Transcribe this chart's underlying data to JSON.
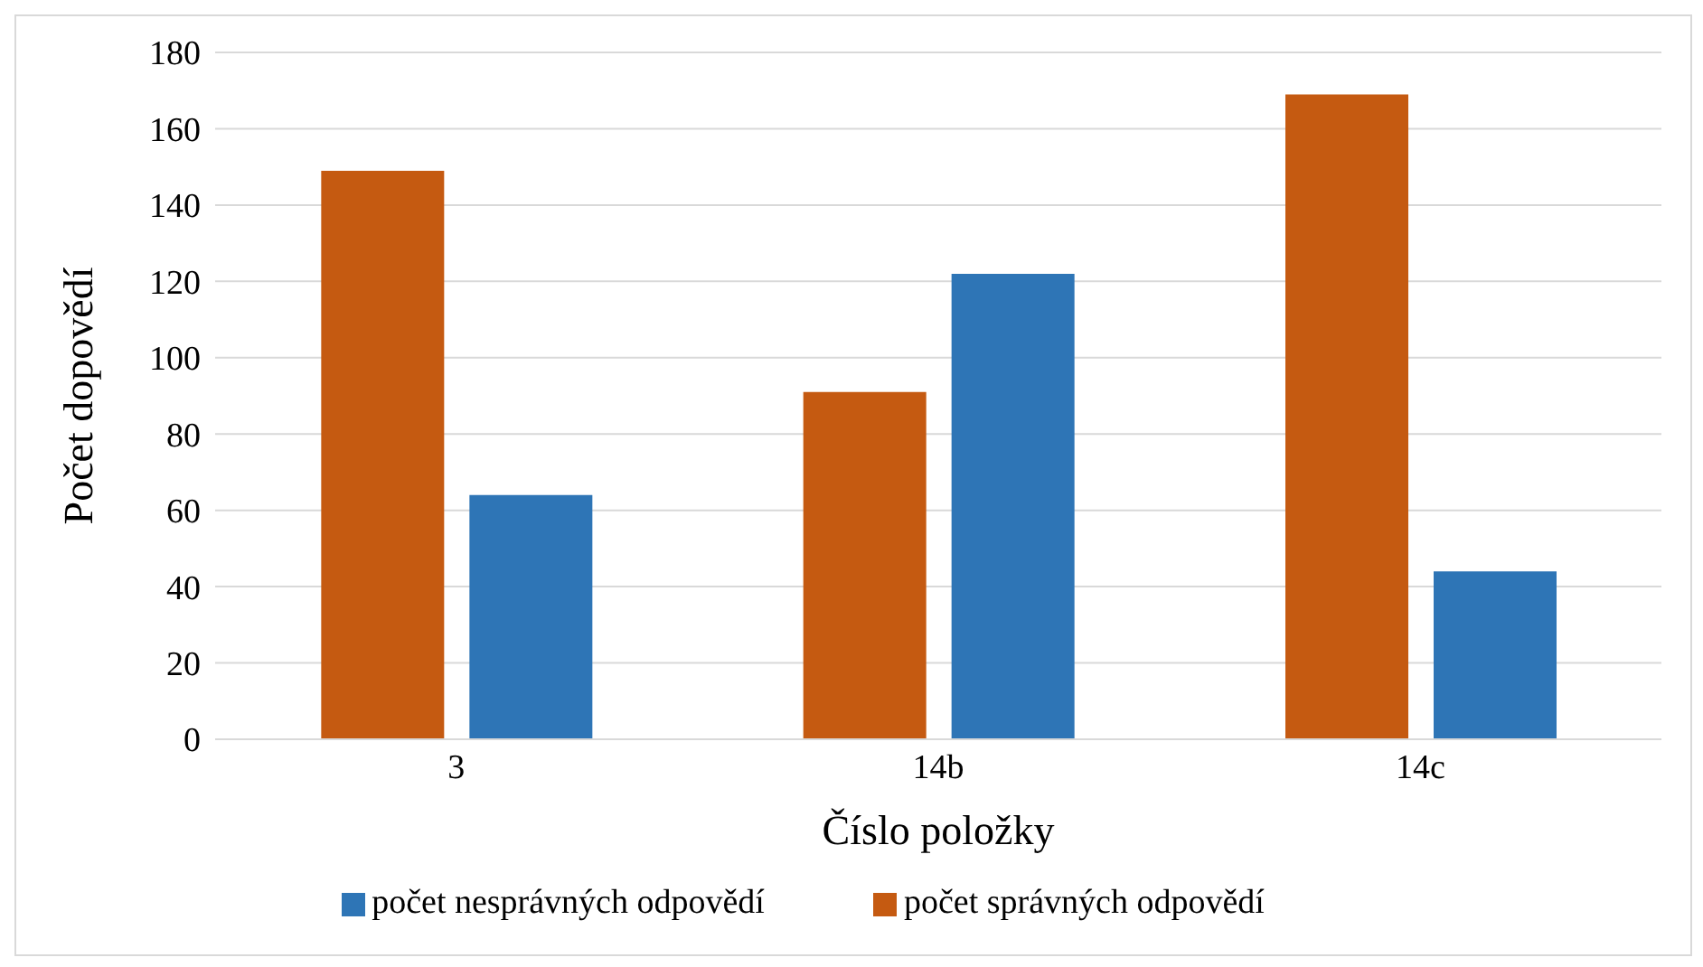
{
  "chart_data": {
    "type": "bar",
    "xlabel": "Číslo položky",
    "ylabel": "Počet dopovědí",
    "categories": [
      "3",
      "14b",
      "14c"
    ],
    "series": [
      {
        "name": "počet správných odpovědí",
        "color": "#c55a11",
        "values": [
          149,
          91,
          169
        ]
      },
      {
        "name": "počet nesprávných odpovědí",
        "color": "#2e75b6",
        "values": [
          64,
          122,
          44
        ]
      }
    ],
    "ylim": [
      0,
      180
    ],
    "yticks": [
      0,
      20,
      40,
      60,
      80,
      100,
      120,
      140,
      160,
      180
    ],
    "grid": "y",
    "legend": "bottom"
  }
}
